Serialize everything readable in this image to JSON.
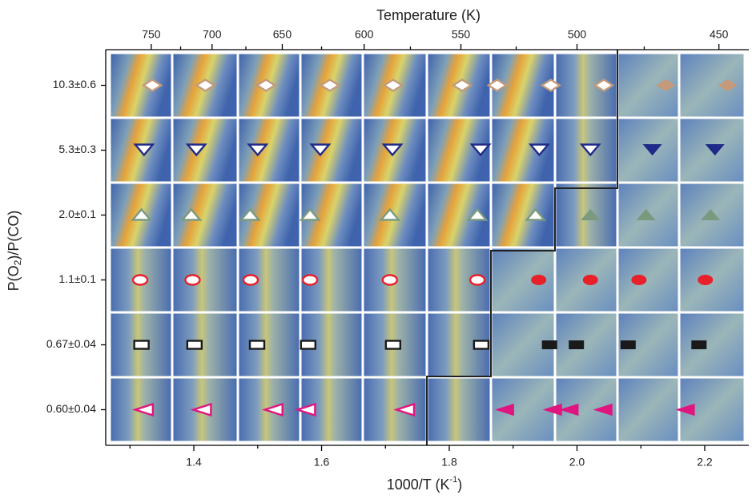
{
  "chart_data": {
    "type": "scatter",
    "title": "Temperature  (K)",
    "xlabel": {
      "main": "1000/T   (K",
      "sup": "-1",
      "end": ")"
    },
    "ylabel": {
      "main": "P(O",
      "sub": "2",
      "end": ")/P(CO)"
    },
    "categories": [
      "10.3±0.6",
      "5.3±0.3",
      "2.0±0.1",
      "1.1±0.1",
      "0.67±0.04",
      "0.60±0.04"
    ],
    "xlim": [
      1.262,
      2.269
    ],
    "xticks": [
      1.4,
      1.6,
      1.8,
      {
        "value": 2,
        "label": "2.0"
      },
      2.2
    ],
    "xminorticks": [
      1.3,
      1.5,
      1.7,
      1.9,
      2.1
    ],
    "x2ticks": [
      750,
      700,
      650,
      600,
      550,
      500,
      450
    ],
    "x2minorticks": [
      725,
      675,
      625,
      575,
      525,
      475
    ],
    "series": [
      {
        "marker": "diamond",
        "color": "#c49a7a",
        "x": [
          1.335,
          1.418,
          1.513,
          1.613,
          1.712,
          1.82,
          1.875,
          1.959,
          2.042,
          2.139,
          2.236
        ],
        "filled": [
          false,
          false,
          false,
          false,
          false,
          false,
          false,
          false,
          false,
          true,
          true
        ]
      },
      {
        "marker": "triangle-down",
        "color": "#1f2a8a",
        "x": [
          1.322,
          1.404,
          1.5,
          1.598,
          1.711,
          1.849,
          1.941,
          2.021,
          2.118,
          2.216
        ],
        "filled": [
          false,
          false,
          false,
          false,
          false,
          false,
          false,
          false,
          true,
          true
        ]
      },
      {
        "marker": "triangle-up",
        "color": "#7a9a80",
        "x": [
          1.318,
          1.396,
          1.488,
          1.582,
          1.707,
          1.844,
          1.935,
          2.021,
          2.108,
          2.209
        ],
        "filled": [
          false,
          false,
          false,
          false,
          false,
          false,
          false,
          true,
          true,
          true
        ]
      },
      {
        "marker": "ellipse",
        "color": "#e8202a",
        "x": [
          1.316,
          1.398,
          1.489,
          1.582,
          1.707,
          1.844,
          1.94,
          2.021,
          2.097,
          2.201
        ],
        "filled": [
          false,
          false,
          false,
          false,
          false,
          false,
          true,
          true,
          true,
          true
        ]
      },
      {
        "marker": "rect",
        "color": "#1a1a1a",
        "x": [
          1.318,
          1.401,
          1.499,
          1.579,
          1.712,
          1.85,
          1.957,
          1.999,
          2.08,
          2.191
        ],
        "filled": [
          false,
          false,
          false,
          false,
          false,
          false,
          true,
          true,
          true,
          true
        ]
      },
      {
        "marker": "triangle-left",
        "color": "#e0157f",
        "x": [
          1.322,
          1.413,
          1.525,
          1.576,
          1.731,
          1.887,
          1.962,
          1.988,
          2.041,
          2.17
        ],
        "filled": [
          false,
          false,
          false,
          false,
          false,
          true,
          true,
          true,
          true,
          true
        ]
      }
    ]
  }
}
